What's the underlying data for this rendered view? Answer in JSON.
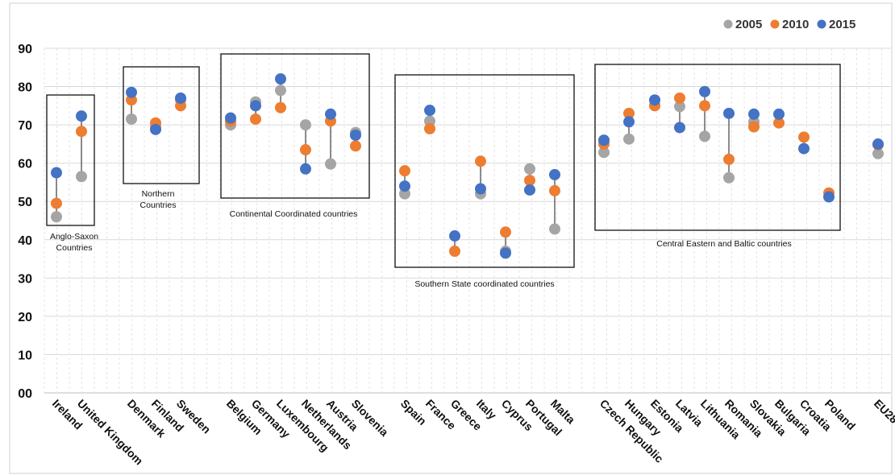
{
  "chart_data": {
    "type": "scatter",
    "ylim": [
      0,
      90
    ],
    "y_ticks": [
      "00",
      "10",
      "20",
      "30",
      "40",
      "50",
      "60",
      "70",
      "80",
      "90"
    ],
    "grid": true,
    "legend_position": "top-right",
    "categories": [
      "Ireland",
      "United Kingdom",
      "Denmark",
      "Finland",
      "Sweden",
      "Belgium",
      "Germany",
      "Luxembourg",
      "Netherlands",
      "Austria",
      "Slovenia",
      "Spain",
      "France",
      "Greece",
      "Italy",
      "Cyprus",
      "Portugal",
      "Malta",
      "Czech Republic",
      "Hungary",
      "Estonia",
      "Latvia",
      "Lithuania",
      "Romania",
      "Slovakia",
      "Bulgaria",
      "Croatia",
      "Poland",
      "EU28"
    ],
    "series": [
      {
        "name": "2005",
        "color": "#a5a5a5",
        "values": [
          46,
          56.5,
          71.5,
          69.5,
          76.5,
          70,
          76,
          79,
          70,
          59.8,
          68,
          52,
          71,
          null,
          52,
          37,
          58.5,
          42.8,
          62.8,
          66.3,
          75.2,
          74.8,
          67,
          56.2,
          70.8,
          null,
          null,
          null,
          62.5
        ]
      },
      {
        "name": "2010",
        "color": "#ed7d31",
        "values": [
          49.5,
          68.3,
          76.5,
          70.5,
          75,
          71,
          71.5,
          74.5,
          63.5,
          71,
          64.5,
          58,
          69,
          37,
          60.5,
          42,
          55.5,
          52.8,
          65,
          73,
          75,
          77,
          75,
          61,
          69.5,
          70.5,
          66.8,
          52.2,
          64.8
        ]
      },
      {
        "name": "2015",
        "color": "#4472c4",
        "values": [
          57.5,
          72.3,
          78.5,
          68.8,
          77,
          71.8,
          75,
          82,
          58.5,
          72.8,
          67.3,
          54,
          73.8,
          41,
          53.3,
          36.5,
          53,
          57,
          66,
          70.8,
          76.5,
          69.3,
          78.7,
          73,
          72.8,
          72.8,
          63.8,
          51.2,
          65
        ]
      }
    ],
    "groups": [
      {
        "label": "Anglo-Saxon Countries",
        "label_lines": [
          "Anglo-Saxon",
          "Countries"
        ]
      },
      {
        "label": "Northern Countries",
        "label_lines": [
          "Northern",
          "Countries"
        ]
      },
      {
        "label": "Continental Coordinated countries",
        "label_lines": [
          "Continental Coordinated countries"
        ]
      },
      {
        "label": "Southern State coordinated countries",
        "label_lines": [
          "Southern State coordinated countries"
        ]
      },
      {
        "label": "Central Eastern and Baltic countries",
        "label_lines": [
          "Central Eastern and Baltic countries"
        ]
      }
    ]
  }
}
